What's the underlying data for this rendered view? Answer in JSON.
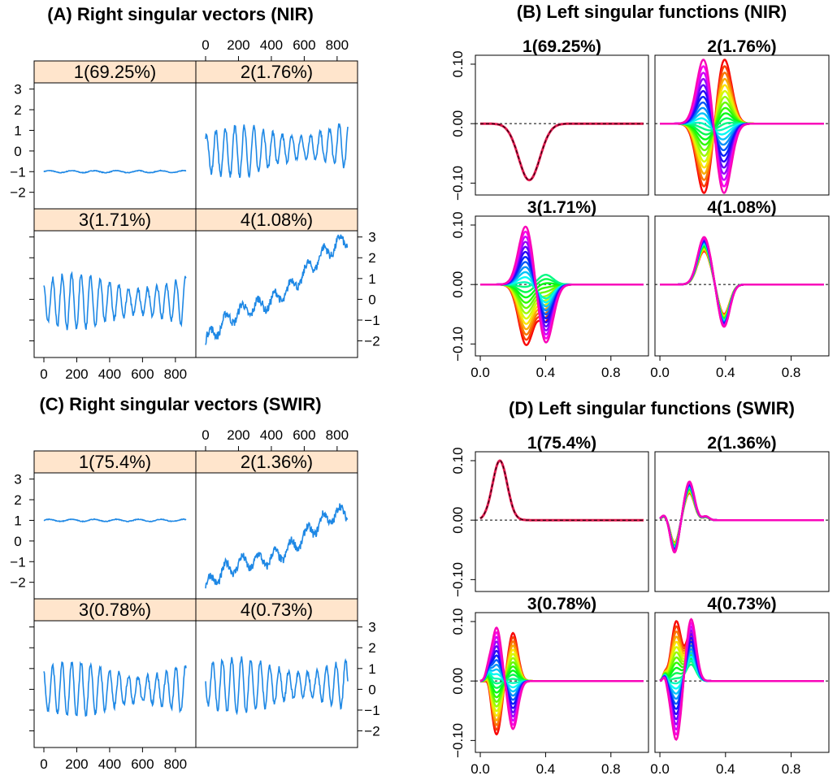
{
  "chart_data": [
    {
      "id": "A",
      "type": "line",
      "title": "(A) Right singular vectors (NIR)",
      "x_ticks": [
        0,
        200,
        400,
        600,
        800
      ],
      "xlim": [
        0,
        865
      ],
      "y_ticks": [
        -2,
        -1,
        0,
        1,
        2,
        3
      ],
      "ylim": [
        -2.8,
        3.3
      ],
      "line_color": "#1e88e5",
      "strip_color": "#ffe5cc",
      "panels": [
        {
          "label": "1(69.25%)",
          "kind": "flat",
          "level": -1.0
        },
        {
          "label": "2(1.76%)",
          "kind": "oscillating",
          "amplitude": 1.1,
          "trend": 0.4,
          "center": -0.1
        },
        {
          "label": "3(1.71%)",
          "kind": "oscillating",
          "amplitude": 1.2,
          "trend": 0.0,
          "center": -0.1
        },
        {
          "label": "4(1.08%)",
          "kind": "trend",
          "start": -2.0,
          "end": 2.7
        }
      ]
    },
    {
      "id": "B",
      "type": "line",
      "title": "(B) Left singular functions (NIR)",
      "x_ticks": [
        "0.0",
        "0.4",
        "0.8"
      ],
      "xlim": [
        -0.03,
        1.03
      ],
      "y_ticks": [
        "-0.10",
        "0.00",
        "0.10"
      ],
      "ylim": [
        -0.12,
        0.115
      ],
      "panels": [
        {
          "label": "1(69.25%)",
          "kind": "single_peak",
          "sign": -1,
          "amp": 0.095,
          "center": 0.3,
          "width": 0.065
        },
        {
          "label": "2(1.76%)",
          "kind": "derivative_fan",
          "amp": 0.115,
          "center": 0.33
        },
        {
          "label": "3(1.71%)",
          "kind": "double_peak_fan",
          "amp": 0.1,
          "center": 0.34
        },
        {
          "label": "4(1.08%)",
          "kind": "derivative_small",
          "amp": 0.08,
          "center": 0.33
        }
      ]
    },
    {
      "id": "C",
      "type": "line",
      "title": "(C) Right singular vectors (SWIR)",
      "x_ticks": [
        0,
        200,
        400,
        600,
        800
      ],
      "xlim": [
        0,
        865
      ],
      "y_ticks": [
        -2,
        -1,
        0,
        1,
        2,
        3
      ],
      "ylim": [
        -2.8,
        3.3
      ],
      "line_color": "#1e88e5",
      "strip_color": "#ffe5cc",
      "panels": [
        {
          "label": "1(75.4%)",
          "kind": "flat",
          "level": 1.0
        },
        {
          "label": "2(1.36%)",
          "kind": "trend",
          "start": -2.2,
          "end": 1.3
        },
        {
          "label": "3(0.78%)",
          "kind": "oscillating",
          "amplitude": 1.2,
          "trend": 0.0,
          "center": 0.0
        },
        {
          "label": "4(0.73%)",
          "kind": "oscillating",
          "amplitude": 1.2,
          "trend": 0.0,
          "center": 0.2
        }
      ]
    },
    {
      "id": "D",
      "type": "line",
      "title": "(D) Left singular functions (SWIR)",
      "x_ticks": [
        "0.0",
        "0.4",
        "0.8"
      ],
      "xlim": [
        -0.03,
        1.03
      ],
      "y_ticks": [
        "-0.10",
        "0.00",
        "0.10"
      ],
      "ylim": [
        -0.12,
        0.115
      ],
      "panels": [
        {
          "label": "1(75.4%)",
          "kind": "single_peak",
          "sign": 1,
          "amp": 0.1,
          "center": 0.12,
          "width": 0.045
        },
        {
          "label": "2(1.36%)",
          "kind": "swir_small",
          "amp": 0.065,
          "center": 0.17
        },
        {
          "label": "3(0.78%)",
          "kind": "swir_fan",
          "amp": 0.09,
          "center": 0.14
        },
        {
          "label": "4(0.73%)",
          "kind": "swir_fan2",
          "amp": 0.105,
          "center": 0.14
        }
      ]
    }
  ]
}
